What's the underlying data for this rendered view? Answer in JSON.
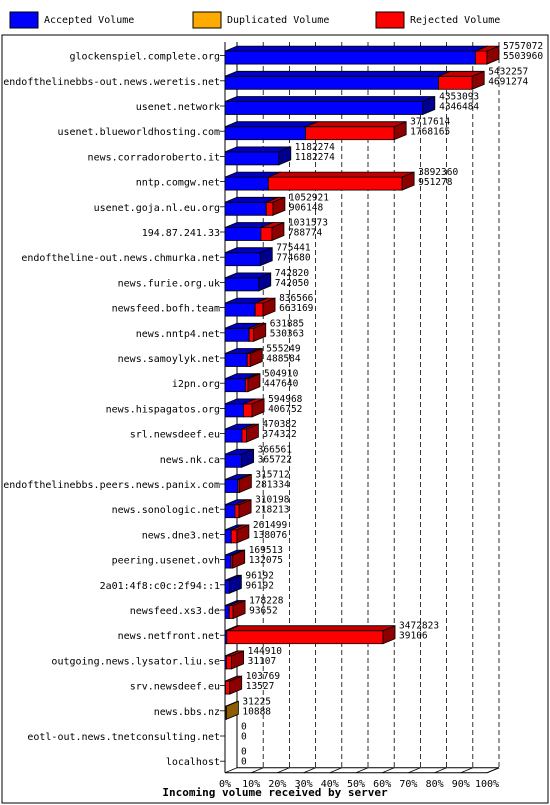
{
  "legend": [
    {
      "label": "Accepted Volume",
      "color": "#0000ff"
    },
    {
      "label": "Duplicated Volume",
      "color": "#ffaa00"
    },
    {
      "label": "Rejected Volume",
      "color": "#ff0000"
    }
  ],
  "chart_data": {
    "type": "bar",
    "orientation": "horizontal",
    "stacked": true,
    "xlabel": "Incoming volume received by server",
    "x_ticks": [
      "0%",
      "10%",
      "20%",
      "30%",
      "40%",
      "50%",
      "60%",
      "70%",
      "80%",
      "90%",
      "100%"
    ],
    "xlim": [
      0,
      100
    ],
    "grid": true,
    "legend_position": "top",
    "categories": [
      "glockenspiel.complete.org",
      "endofthelinebbs-out.news.weretis.net",
      "usenet.network",
      "usenet.blueworldhosting.com",
      "news.corradoroberto.it",
      "nntp.comgw.net",
      "usenet.goja.nl.eu.org",
      "194.87.241.33",
      "endoftheline-out.news.chmurka.net",
      "news.furie.org.uk",
      "newsfeed.bofh.team",
      "news.nntp4.net",
      "news.samoylyk.net",
      "i2pn.org",
      "news.hispagatos.org",
      "srl.newsdeef.eu",
      "news.nk.ca",
      "endofthelinebbs.peers.news.panix.com",
      "news.sonologic.net",
      "news.dne3.net",
      "peering.usenet.ovh",
      "2a01:4f8:c0c:2f94::1",
      "newsfeed.xs3.de",
      "news.netfront.net",
      "outgoing.news.lysator.liu.se",
      "srv.newsdeef.eu",
      "news.bbs.nz",
      "eotl-out.news.tnetconsulting.net",
      "localhost"
    ],
    "offered": [
      5757072,
      5432257,
      4353093,
      3717614,
      1182274,
      3892360,
      1052921,
      1031573,
      775441,
      742820,
      836566,
      631885,
      555249,
      504910,
      594968,
      470382,
      366561,
      315712,
      310198,
      261499,
      169513,
      96192,
      178228,
      3472823,
      144910,
      103769,
      31225,
      0,
      0
    ],
    "accepted": [
      5503960,
      4691274,
      4346484,
      1768165,
      1182274,
      951278,
      906148,
      788774,
      774680,
      742050,
      663169,
      530363,
      488584,
      447640,
      406752,
      374322,
      365722,
      281334,
      218213,
      138076,
      132075,
      96192,
      93652,
      39106,
      31107,
      13527,
      10888,
      0,
      0
    ],
    "duplicated": [
      0,
      0,
      0,
      0,
      0,
      0,
      0,
      0,
      0,
      0,
      0,
      0,
      0,
      0,
      0,
      0,
      0,
      0,
      0,
      0,
      0,
      0,
      0,
      0,
      0,
      0,
      20337,
      0,
      0
    ],
    "series": [
      {
        "name": "Accepted Volume",
        "color": "#0000ff"
      },
      {
        "name": "Duplicated Volume",
        "color": "#ffaa00"
      },
      {
        "name": "Rejected Volume",
        "color": "#ff0000"
      }
    ]
  }
}
